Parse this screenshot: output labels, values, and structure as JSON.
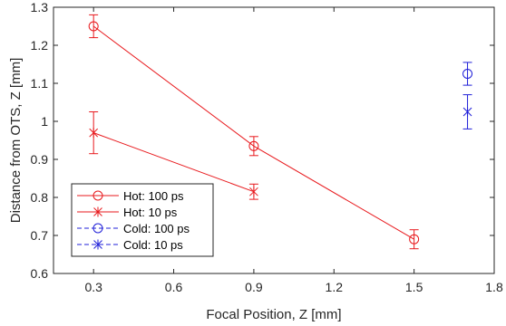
{
  "chart_data": {
    "type": "scatter",
    "xlabel": "Focal Position, Z [mm]",
    "ylabel": "Distance from OTS, Z [mm]",
    "xlim": [
      0.15,
      1.8
    ],
    "ylim": [
      0.6,
      1.3
    ],
    "xticks": [
      0.3,
      0.6,
      0.9,
      1.2,
      1.5,
      1.8
    ],
    "xtick_labels": [
      "0.3",
      "0.6",
      "0.9",
      "1.2",
      "1.5",
      "1.8"
    ],
    "yticks": [
      0.6,
      0.7,
      0.8,
      0.9,
      1.0,
      1.1,
      1.2,
      1.3
    ],
    "ytick_labels": [
      "0.6",
      "0.7",
      "0.8",
      "0.9",
      "1",
      "1.1",
      "1.2",
      "1.3"
    ],
    "grid": false,
    "legend_position": "bottom-left",
    "series": [
      {
        "name": "Hot: 100 ps",
        "color": "#e8191d",
        "marker": "circle",
        "line": "solid",
        "x": [
          0.3,
          0.9,
          1.5
        ],
        "y": [
          1.25,
          0.935,
          0.69
        ],
        "err": [
          0.03,
          0.025,
          0.025
        ]
      },
      {
        "name": "Hot: 10 ps",
        "color": "#e8191d",
        "marker": "star",
        "line": "solid",
        "x": [
          0.3,
          0.9
        ],
        "y": [
          0.97,
          0.815
        ],
        "err": [
          0.055,
          0.02
        ]
      },
      {
        "name": "Cold: 100 ps",
        "color": "#1f1fd8",
        "marker": "circle",
        "line": "dashed",
        "x": [
          1.7
        ],
        "y": [
          1.125
        ],
        "err": [
          0.03
        ]
      },
      {
        "name": "Cold: 10 ps",
        "color": "#1f1fd8",
        "marker": "star",
        "line": "dashed",
        "x": [
          1.7
        ],
        "y": [
          1.025
        ],
        "err": [
          0.045
        ]
      }
    ]
  }
}
